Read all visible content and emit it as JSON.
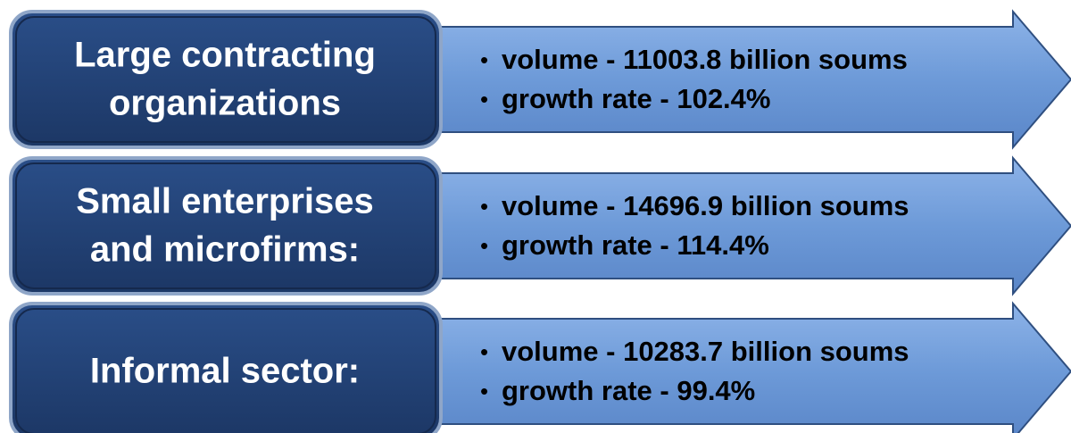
{
  "rows": [
    {
      "label_lines": [
        "Large contracting",
        "organizations"
      ],
      "bullets": [
        "volume - 11003.8 billion soums",
        "growth rate - 102.4%"
      ]
    },
    {
      "label_lines": [
        "Small enterprises",
        "and microfirms:"
      ],
      "bullets": [
        "volume - 14696.9 billion soums",
        "growth rate - 114.4%"
      ]
    },
    {
      "label_lines": [
        "Informal sector:"
      ],
      "bullets": [
        "volume - 10283.7 billion soums",
        "growth rate - 99.4%"
      ]
    }
  ]
}
